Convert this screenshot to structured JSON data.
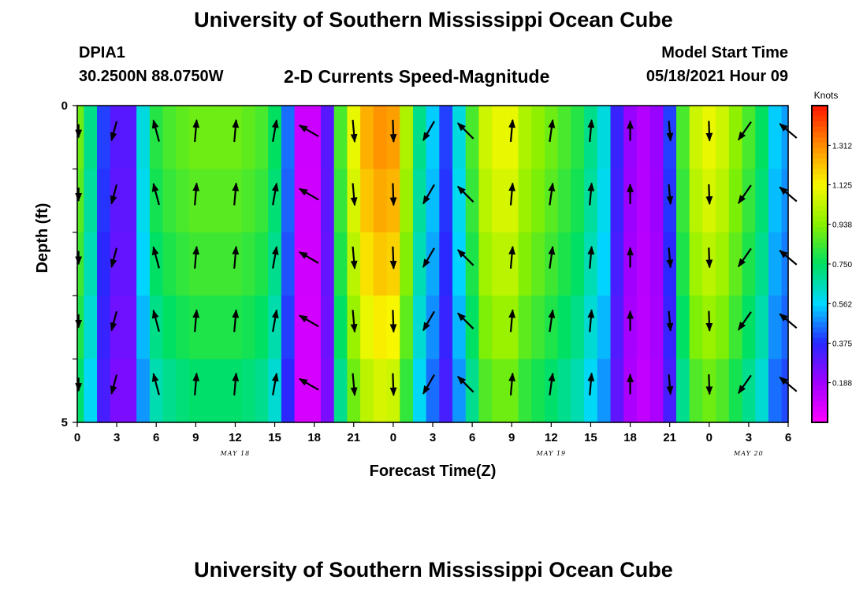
{
  "page": {
    "top_title": "University of Southern Mississippi Ocean Cube",
    "bottom_title": "University of Southern Mississippi Ocean Cube",
    "station_id": "DPIA1",
    "station_coords": "30.2500N  88.0750W",
    "plot_title": "2-D Currents Speed-Magnitude",
    "model_start_label": "Model Start Time",
    "model_start_value": "05/18/2021 Hour 09"
  },
  "chart_data": {
    "type": "heatmap",
    "title": "2-D Currents Speed-Magnitude",
    "xlabel": "Forecast Time(Z)",
    "ylabel": "Depth (ft)",
    "x_tick_labels": [
      "0",
      "3",
      "6",
      "9",
      "12",
      "15",
      "18",
      "21",
      "0",
      "3",
      "6",
      "9",
      "12",
      "15",
      "18",
      "21",
      "0",
      "3",
      "6"
    ],
    "date_labels": [
      {
        "text": "MAY 18",
        "tick_index": 4
      },
      {
        "text": "MAY 19",
        "tick_index": 12
      },
      {
        "text": "MAY 20",
        "tick_index": 17
      }
    ],
    "y_range": [
      0,
      5
    ],
    "y_tick_labels": [
      "0",
      "5"
    ],
    "y_minor_ticks": 4,
    "colorbar": {
      "unit": "Knots",
      "range": [
        0.0,
        1.5
      ],
      "tick_labels": [
        "1.312",
        "1.125",
        "0.938",
        "0.750",
        "0.562",
        "0.375",
        "0.188"
      ],
      "tick_values": [
        1.312,
        1.125,
        0.938,
        0.75,
        0.562,
        0.375,
        0.188
      ],
      "colors": [
        "#ff00ff",
        "#a000ff",
        "#2828ff",
        "#00d8ff",
        "#00e060",
        "#88f000",
        "#f8f800",
        "#ff8c00",
        "#ff1400"
      ]
    },
    "time_hours": [
      0,
      54
    ],
    "speed_profile_hour": [
      0,
      1,
      2,
      3,
      4,
      5,
      6,
      7,
      8,
      9,
      10,
      11,
      12,
      13,
      14,
      15,
      16,
      17,
      18,
      19,
      20,
      21,
      22,
      23,
      24,
      25,
      26,
      27,
      28,
      29,
      30,
      31,
      32,
      33,
      34,
      35,
      36,
      37,
      38,
      39,
      40,
      41,
      42,
      43,
      44,
      45,
      46,
      47,
      48,
      49,
      50,
      51,
      52,
      53,
      54
    ],
    "speed_profile_knots": [
      0.9,
      0.7,
      0.4,
      0.3,
      0.3,
      0.6,
      0.8,
      0.85,
      0.88,
      0.9,
      0.9,
      0.9,
      0.9,
      0.88,
      0.85,
      0.75,
      0.45,
      0.1,
      0.1,
      0.3,
      0.85,
      1.1,
      1.25,
      1.3,
      1.28,
      1.0,
      0.7,
      0.55,
      0.4,
      0.6,
      0.85,
      1.05,
      1.1,
      1.1,
      1.0,
      0.95,
      0.9,
      0.85,
      0.8,
      0.7,
      0.6,
      0.35,
      0.2,
      0.15,
      0.2,
      0.4,
      0.85,
      1.05,
      1.1,
      1.05,
      0.95,
      0.85,
      0.75,
      0.55,
      0.5
    ],
    "depth_factor": [
      1.0,
      0.97,
      0.93,
      0.88,
      0.82
    ],
    "vectors_depth_ft": [
      0.2,
      1.2,
      2.2,
      3.2,
      4.2
    ],
    "vectors_column_hours": [
      0.1,
      2.8,
      6.0,
      9.0,
      12.0,
      15.0,
      17.6,
      21.0,
      24.0,
      26.7,
      29.5,
      33.0,
      36.0,
      39.0,
      42.0,
      45.0,
      48.0,
      50.7,
      54.0
    ],
    "vectors_dir_deg": [
      180,
      195,
      345,
      5,
      5,
      10,
      300,
      175,
      178,
      210,
      315,
      5,
      8,
      5,
      0,
      175,
      178,
      215,
      310
    ],
    "vectors_len_frac": [
      0.6,
      0.9,
      1.0,
      1.0,
      1.0,
      1.0,
      1.0,
      1.0,
      1.0,
      1.0,
      1.0,
      1.0,
      1.0,
      1.0,
      0.9,
      0.9,
      0.9,
      1.0,
      1.0
    ]
  }
}
